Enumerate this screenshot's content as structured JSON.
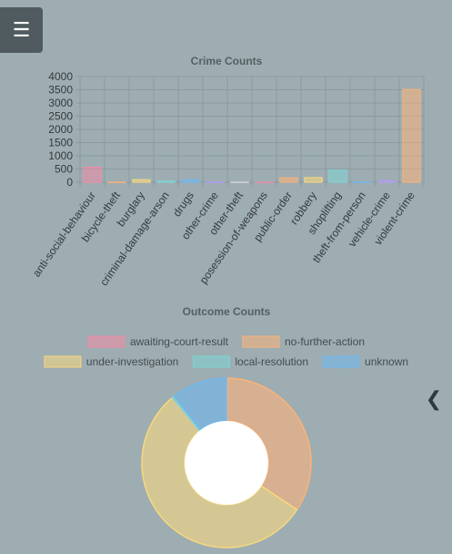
{
  "ui": {
    "menu_label": "☰",
    "collapse_label": "❮"
  },
  "chart_data": [
    {
      "type": "bar",
      "title": "Crime Counts",
      "xlabel": "",
      "ylabel": "",
      "ylim": [
        0,
        4000
      ],
      "ytick_labels": [
        "0",
        "500",
        "1000",
        "1500",
        "2000",
        "2500",
        "3000",
        "3500",
        "4000"
      ],
      "grid": true,
      "categories": [
        "anti-social-behaviour",
        "bicycle-theft",
        "burglary",
        "criminal-damage-arson",
        "drugs",
        "other-crime",
        "other-theft",
        "posession-of-weapons",
        "public-order",
        "robbery",
        "shoplifting",
        "theft-from-person",
        "vehicle-crime",
        "violent-crime"
      ],
      "values": [
        570,
        5,
        100,
        45,
        95,
        5,
        5,
        5,
        165,
        175,
        460,
        10,
        55,
        3510
      ],
      "colors": [
        "#f08ca6",
        "#fbb27a",
        "#f8d87e",
        "#7fd4d4",
        "#6fb8f0",
        "#b39cf5",
        "#d0d4da",
        "#f08ca6",
        "#fbb27a",
        "#f8d87e",
        "#7fd4d4",
        "#6fb8f0",
        "#b39cf5",
        "#fbb27a"
      ]
    },
    {
      "type": "pie",
      "subtype": "doughnut",
      "title": "Outcome Counts",
      "legend_position": "top",
      "labels": [
        "awaiting-court-result",
        "no-further-action",
        "under-investigation",
        "local-resolution",
        "unknown"
      ],
      "values": [
        4,
        580,
        930,
        8,
        180
      ],
      "colors": [
        "#f08ca6",
        "#fbb27a",
        "#f8d87e",
        "#7fd4d4",
        "#6fb8f0"
      ]
    }
  ]
}
